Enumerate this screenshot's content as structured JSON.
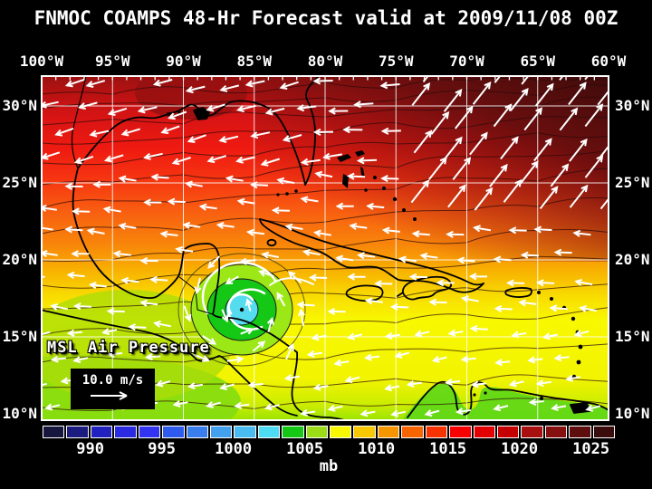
{
  "title": "FNMOC COAMPS 48-Hr Forecast valid at 2009/11/08 00Z",
  "map": {
    "field_label": "MSL Air Pressure",
    "wind_reference_label": "10.0 m/s",
    "lon_labels": [
      "100°W",
      "95°W",
      "90°W",
      "85°W",
      "80°W",
      "75°W",
      "70°W",
      "65°W",
      "60°W"
    ],
    "lat_labels_left": [
      "30°N",
      "25°N",
      "20°N",
      "15°N",
      "10°N"
    ],
    "lat_labels_right": [
      "30°N",
      "25°N",
      "20°N",
      "15°N",
      "10°N"
    ]
  },
  "colorbar": {
    "unit_label": "mb",
    "tick_labels": [
      "990",
      "995",
      "1000",
      "1005",
      "1010",
      "1015",
      "1020",
      "1025"
    ],
    "tick_positions_pct": [
      8.33,
      20.83,
      33.33,
      45.83,
      58.33,
      70.83,
      83.33,
      95.83
    ],
    "cell_colors": [
      "#16163f",
      "#1b1b80",
      "#2121c0",
      "#2a2ae0",
      "#3333f2",
      "#2e5bee",
      "#3a7dee",
      "#42a0ee",
      "#48bcf0",
      "#4edcf2",
      "#16c816",
      "#9cdc16",
      "#f8f800",
      "#f8c800",
      "#f89600",
      "#f86400",
      "#f83200",
      "#f80000",
      "#e20000",
      "#c60000",
      "#a81010",
      "#861010",
      "#5e0e0e",
      "#3a0c0c"
    ]
  },
  "colors": {
    "background": "#000000",
    "text": "#ffffff",
    "grid_lines": "#ffffff",
    "coastlines": "#000000",
    "wind_arrows": "#ffffff",
    "cyclone_center": "#55dcee",
    "cyclone_ring_green": "#16c816",
    "cyclone_ring_yellow_green": "#9ce816"
  }
}
